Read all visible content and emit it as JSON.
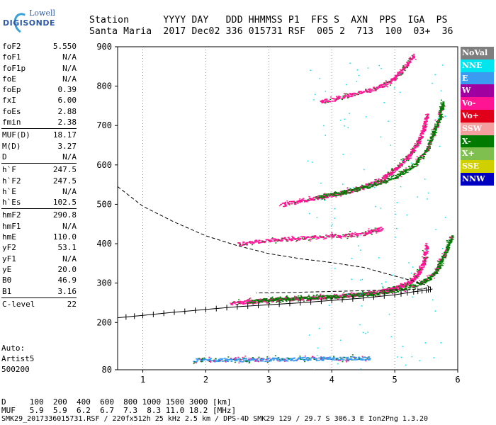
{
  "logo": {
    "line1": "Lowell",
    "line2": "DIGISONDE"
  },
  "header": {
    "line1": "Station      YYYY DAY   DDD HHMMSS P1  FFS S  AXN  PPS  IGA  PS",
    "line2": "Santa Maria  2017 Dec02 336 015731 RSF  005 2  713  100  03+  36"
  },
  "params": [
    [
      {
        "k": "foF2",
        "v": "5.550"
      },
      {
        "k": "foF1",
        "v": "N/A"
      },
      {
        "k": "foF1p",
        "v": "N/A"
      },
      {
        "k": "foE",
        "v": "N/A"
      },
      {
        "k": "foEp",
        "v": "0.39"
      },
      {
        "k": "fxI",
        "v": "6.00"
      },
      {
        "k": "foEs",
        "v": "2.88"
      },
      {
        "k": "fmin",
        "v": "2.38"
      }
    ],
    [
      {
        "k": "MUF(D)",
        "v": "18.17"
      },
      {
        "k": "M(D)",
        "v": "3.27"
      },
      {
        "k": "D",
        "v": "N/A"
      }
    ],
    [
      {
        "k": "h`F",
        "v": "247.5"
      },
      {
        "k": "h`F2",
        "v": "247.5"
      },
      {
        "k": "h`E",
        "v": "N/A"
      },
      {
        "k": "h`Es",
        "v": "102.5"
      }
    ],
    [
      {
        "k": "hmF2",
        "v": "290.8"
      },
      {
        "k": "hmF1",
        "v": "N/A"
      },
      {
        "k": "hmE",
        "v": "110.0"
      },
      {
        "k": "yF2",
        "v": "53.1"
      },
      {
        "k": "yF1",
        "v": "N/A"
      },
      {
        "k": "yE",
        "v": "20.0"
      },
      {
        "k": "B0",
        "v": "46.9"
      },
      {
        "k": "B1",
        "v": "3.16"
      }
    ],
    [
      {
        "k": "C-level",
        "v": "22"
      }
    ]
  ],
  "auto": {
    "line1": "Auto:",
    "line2": "Artist5",
    "line3": "500200"
  },
  "legend": [
    {
      "label": "NoVal",
      "color": "#7f7f7f"
    },
    {
      "label": "NNE",
      "color": "#00e5ee"
    },
    {
      "label": "E",
      "color": "#3a9bf0"
    },
    {
      "label": "W",
      "color": "#a000a0"
    },
    {
      "label": "Vo-",
      "color": "#ff1493"
    },
    {
      "label": "Vo+",
      "color": "#e0001a"
    },
    {
      "label": "SSW",
      "color": "#f4a0a0"
    },
    {
      "label": "X-",
      "color": "#007a00"
    },
    {
      "label": "X+",
      "color": "#7fbf50"
    },
    {
      "label": "SSE",
      "color": "#d0d000"
    },
    {
      "label": "NNW",
      "color": "#0000c0"
    }
  ],
  "footer": {
    "line1": "D     100  200  400  600  800 1000 1500 3000 [km]",
    "line2": "MUF   5.9  5.9  6.2  6.7  7.3  8.3 11.0 18.2 [MHz]",
    "line3": "SMK29_2017336015731.RSF / 220fx512h 25 kHz 2.5 km / DPS-4D SMK29 129 / 29.7 S 306.3 E Ion2Png 1.3.20"
  },
  "chart_data": {
    "type": "scatter",
    "title": "",
    "xlabel": "",
    "ylabel": "",
    "xlim": [
      0.6,
      6.0
    ],
    "ylim": [
      80,
      900
    ],
    "xticks": [
      1,
      2,
      3,
      4,
      5,
      6
    ],
    "yticks": [
      80,
      200,
      300,
      400,
      500,
      600,
      700,
      800,
      900
    ],
    "grid": "x-dotted",
    "legend_position": "right",
    "series": [
      {
        "name": "Vo-",
        "trace_type": "o-trace F layer",
        "x": [
          2.4,
          2.8,
          3.2,
          3.6,
          4.0,
          4.4,
          4.8,
          5.0,
          5.2,
          5.35,
          5.45,
          5.5
        ],
        "y": [
          250,
          255,
          260,
          262,
          266,
          272,
          280,
          288,
          300,
          320,
          350,
          400
        ]
      },
      {
        "name": "X-",
        "trace_type": "x-trace F layer",
        "x": [
          2.7,
          3.1,
          3.5,
          3.9,
          4.3,
          4.7,
          5.1,
          5.4,
          5.6,
          5.7,
          5.8,
          5.9
        ],
        "y": [
          255,
          260,
          263,
          266,
          270,
          275,
          285,
          300,
          320,
          345,
          380,
          420
        ]
      },
      {
        "name": "Vo-",
        "trace_type": "second hop o-trace",
        "x": [
          3.2,
          3.6,
          4.0,
          4.4,
          4.8,
          5.0,
          5.2,
          5.35,
          5.45,
          5.5
        ],
        "y": [
          500,
          512,
          525,
          540,
          565,
          590,
          620,
          655,
          690,
          730
        ]
      },
      {
        "name": "X-",
        "trace_type": "second hop x-trace",
        "x": [
          3.8,
          4.2,
          4.6,
          5.0,
          5.3,
          5.5,
          5.6,
          5.7,
          5.75
        ],
        "y": [
          520,
          532,
          548,
          570,
          600,
          640,
          680,
          720,
          760
        ]
      },
      {
        "name": "Vo-",
        "trace_type": "third hop trace",
        "x": [
          3.8,
          4.2,
          4.6,
          4.9,
          5.1,
          5.3
        ],
        "y": [
          760,
          775,
          790,
          810,
          840,
          880
        ]
      },
      {
        "name": "Vo-",
        "trace_type": "multihop diffuse",
        "x": [
          2.5,
          3.0,
          3.5,
          4.0,
          4.5,
          4.8
        ],
        "y": [
          400,
          410,
          415,
          420,
          425,
          440
        ]
      },
      {
        "name": "E",
        "trace_type": "Es layer",
        "x": [
          1.8,
          2.2,
          2.6,
          3.0,
          3.4,
          3.8,
          4.2,
          4.6
        ],
        "y": [
          105,
          106,
          106,
          107,
          108,
          109,
          110,
          110
        ]
      }
    ],
    "profile": {
      "name": "electron density profile (dashed)",
      "x": [
        0.6,
        1.0,
        1.5,
        2.0,
        2.5,
        3.0,
        3.5,
        4.0,
        4.5,
        5.0,
        5.3,
        5.5,
        5.55,
        5.45,
        5.2,
        4.8,
        4.3,
        3.8,
        3.3,
        2.8
      ],
      "y": [
        545,
        495,
        455,
        420,
        395,
        375,
        362,
        352,
        340,
        318,
        305,
        295,
        290,
        285,
        283,
        282,
        280,
        278,
        276,
        275
      ]
    },
    "model_curve": {
      "name": "model trace with error bars",
      "x": [
        0.6,
        1.0,
        1.5,
        2.0,
        2.5,
        3.0,
        3.5,
        4.0,
        4.5,
        5.0,
        5.3,
        5.5,
        5.6
      ],
      "y": [
        212,
        218,
        226,
        233,
        240,
        245,
        250,
        256,
        262,
        270,
        278,
        282,
        285
      ]
    }
  }
}
